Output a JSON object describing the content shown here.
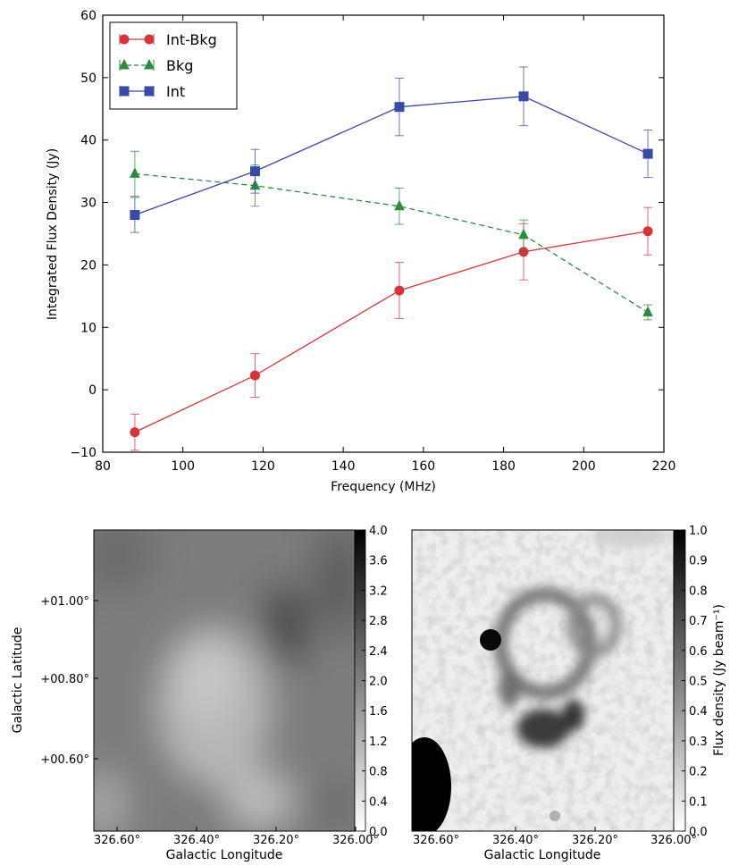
{
  "chart_data": [
    {
      "type": "line",
      "title": "",
      "xlabel": "Frequency (MHz)",
      "ylabel": "Integrated Flux Density (Jy)",
      "xlim": [
        80,
        220
      ],
      "ylim": [
        -10,
        60
      ],
      "xticks": [
        80,
        100,
        120,
        140,
        160,
        180,
        200,
        220
      ],
      "yticks": [
        -10,
        0,
        10,
        20,
        30,
        40,
        50,
        60
      ],
      "xtick_labels": [
        "80",
        "100",
        "120",
        "140",
        "160",
        "180",
        "200",
        "220"
      ],
      "ytick_labels": [
        "−10",
        "0",
        "10",
        "20",
        "30",
        "40",
        "50",
        "60"
      ],
      "grid": false,
      "legend_position": "top-left",
      "x": [
        88,
        118,
        154,
        185,
        216
      ],
      "series": [
        {
          "name": "Int-Bkg",
          "color": "#d6333b",
          "marker": "circle",
          "linestyle": "solid",
          "values": [
            -6.8,
            2.3,
            15.9,
            22.1,
            25.4
          ],
          "errors": [
            2.9,
            3.5,
            4.5,
            4.5,
            3.8
          ]
        },
        {
          "name": "Bkg",
          "color": "#2e8b3e",
          "marker": "triangle",
          "linestyle": "dashed",
          "values": [
            34.6,
            32.7,
            29.4,
            24.8,
            12.4
          ],
          "errors": [
            3.6,
            3.3,
            2.9,
            2.4,
            1.2
          ]
        },
        {
          "name": "Int",
          "color": "#3a48a8",
          "marker": "square",
          "linestyle": "solid",
          "values": [
            28.0,
            35.0,
            45.3,
            47.0,
            37.8
          ],
          "errors": [
            2.8,
            3.5,
            4.6,
            4.7,
            3.8
          ]
        }
      ]
    },
    {
      "type": "heatmap",
      "xlabel": "Galactic Longitude",
      "ylabel": "Galactic Latitude",
      "xtick_labels": [
        "326.60°",
        "326.40°",
        "326.20°",
        "326.00°"
      ],
      "ytick_labels": [
        "+01.00°",
        "+00.80°",
        "+00.60°"
      ],
      "colorbar": {
        "label": "",
        "range": [
          0.0,
          4.0
        ],
        "tick_labels": [
          "4.0",
          "3.6",
          "3.2",
          "2.8",
          "2.4",
          "2.0",
          "1.6",
          "1.2",
          "0.8",
          "0.4",
          "0.0"
        ]
      }
    },
    {
      "type": "heatmap",
      "xlabel": "Galactic Longitude",
      "ylabel": "",
      "xtick_labels": [
        "326.60°",
        "326.40°",
        "326.20°",
        "326.00°"
      ],
      "colorbar": {
        "label": "Flux density (Jy beam⁻¹)",
        "range": [
          0.0,
          1.0
        ],
        "tick_labels": [
          "1.0",
          "0.9",
          "0.8",
          "0.7",
          "0.6",
          "0.5",
          "0.4",
          "0.3",
          "0.2",
          "0.1",
          "0.0"
        ]
      }
    }
  ]
}
